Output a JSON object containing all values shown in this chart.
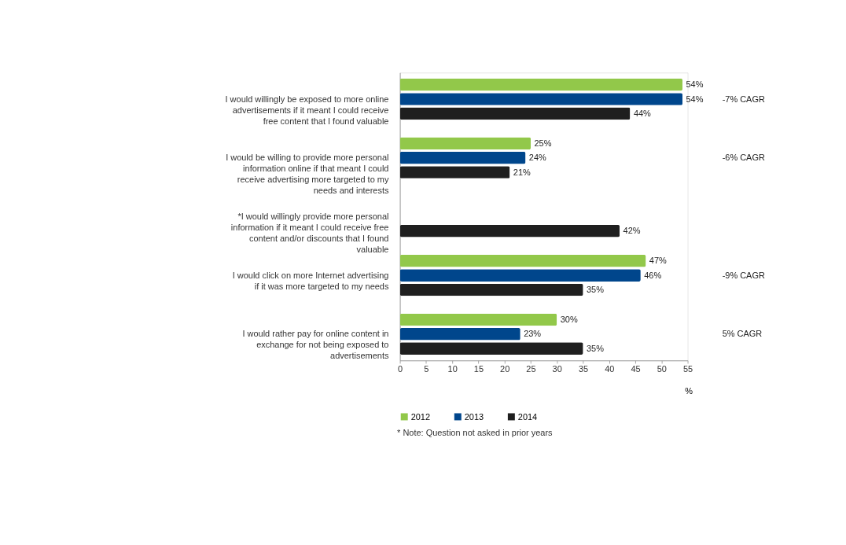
{
  "chart_data": {
    "type": "bar",
    "orientation": "horizontal",
    "categories": [
      "I would willingly be exposed to more online advertisements if it meant I could receive free content that I found valuable",
      "I would be willing to provide more personal information online if that meant I could receive advertising more targeted to my needs and interests",
      "*I would willingly provide more personal information if it meant I could receive free content and/or discounts that I found valuable",
      "I would click on more Internet advertising if it was more targeted to my needs",
      "I would rather pay for online content in exchange for not being exposed to advertisements"
    ],
    "series": [
      {
        "name": "2012",
        "color": "#92c84a",
        "values": [
          54,
          25,
          null,
          47,
          30
        ],
        "value_labels": [
          "54%",
          "25%",
          null,
          "47%",
          "30%"
        ]
      },
      {
        "name": "2013",
        "color": "#00468c",
        "values": [
          54,
          24,
          null,
          46,
          23
        ],
        "value_labels": [
          "54%",
          "24%",
          null,
          "46%",
          "23%"
        ]
      },
      {
        "name": "2014",
        "color": "#1f1f1f",
        "values": [
          44,
          21,
          42,
          35,
          35
        ],
        "value_labels": [
          "44%",
          "21%",
          "42%",
          "35%",
          "35%"
        ]
      }
    ],
    "xlim": [
      0,
      55
    ],
    "xticks": [
      0,
      5,
      10,
      15,
      20,
      25,
      30,
      35,
      40,
      45,
      50,
      55
    ],
    "xlabel": "%",
    "legend": "bottom",
    "grid": false,
    "annotations": [
      "-7% CAGR",
      "-6% CAGR",
      "-9% CAGR",
      "5% CAGR",
      "* Note: Question not asked in prior years"
    ]
  }
}
